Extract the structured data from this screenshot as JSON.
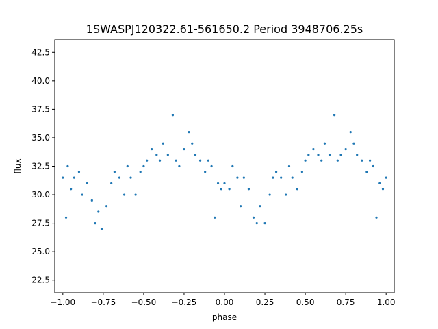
{
  "chart_data": {
    "type": "scatter",
    "title": "1SWASPJ120322.61-561650.2 Period 3948706.25s",
    "xlabel": "phase",
    "ylabel": "flux",
    "xlim": [
      -1.05,
      1.05
    ],
    "ylim": [
      21.4,
      43.6
    ],
    "xticks": [
      -1.0,
      -0.75,
      -0.5,
      -0.25,
      0.0,
      0.25,
      0.5,
      0.75,
      1.0
    ],
    "xtick_labels": [
      "−1.00",
      "−0.75",
      "−0.50",
      "−0.25",
      "0.00",
      "0.25",
      "0.50",
      "0.75",
      "1.00"
    ],
    "yticks": [
      22.5,
      25.0,
      27.5,
      30.0,
      32.5,
      35.0,
      37.5,
      40.0,
      42.5
    ],
    "ytick_labels": [
      "22.5",
      "25.0",
      "27.5",
      "30.0",
      "32.5",
      "35.0",
      "37.5",
      "40.0",
      "42.5"
    ],
    "grid": false,
    "marker_color": "#1f77b4",
    "series": [
      {
        "points": [
          [
            -1.0,
            31.5
          ],
          [
            -0.98,
            28.0
          ],
          [
            -0.97,
            32.5
          ],
          [
            -0.95,
            30.5
          ],
          [
            -0.93,
            31.5
          ],
          [
            -0.9,
            32.0
          ],
          [
            -0.88,
            30.0
          ],
          [
            -0.85,
            31.0
          ],
          [
            -0.82,
            29.5
          ],
          [
            -0.8,
            27.5
          ],
          [
            -0.78,
            28.5
          ],
          [
            -0.76,
            27.0
          ],
          [
            -0.73,
            29.0
          ],
          [
            -0.7,
            31.0
          ],
          [
            -0.68,
            32.0
          ],
          [
            -0.65,
            31.5
          ],
          [
            -0.62,
            30.0
          ],
          [
            -0.6,
            32.5
          ],
          [
            -0.58,
            31.5
          ],
          [
            -0.55,
            30.0
          ],
          [
            -0.52,
            32.0
          ],
          [
            -0.5,
            32.5
          ],
          [
            -0.48,
            33.0
          ],
          [
            -0.45,
            34.0
          ],
          [
            -0.42,
            33.5
          ],
          [
            -0.4,
            33.0
          ],
          [
            -0.38,
            34.5
          ],
          [
            -0.35,
            33.5
          ],
          [
            -0.32,
            37.0
          ],
          [
            -0.3,
            33.0
          ],
          [
            -0.28,
            32.5
          ],
          [
            -0.25,
            34.0
          ],
          [
            -0.22,
            35.5
          ],
          [
            -0.2,
            34.5
          ],
          [
            -0.18,
            33.5
          ],
          [
            -0.15,
            33.0
          ],
          [
            -0.12,
            32.0
          ],
          [
            -0.1,
            33.0
          ],
          [
            -0.08,
            32.5
          ],
          [
            -0.06,
            28.0
          ],
          [
            -0.04,
            31.0
          ],
          [
            -0.02,
            30.5
          ],
          [
            0.0,
            31.0
          ],
          [
            0.03,
            30.5
          ],
          [
            0.05,
            32.5
          ],
          [
            0.08,
            31.5
          ],
          [
            0.1,
            29.0
          ],
          [
            0.12,
            31.5
          ],
          [
            0.15,
            30.5
          ],
          [
            0.18,
            28.0
          ],
          [
            0.2,
            27.5
          ],
          [
            0.22,
            29.0
          ],
          [
            0.25,
            27.5
          ],
          [
            0.28,
            30.0
          ],
          [
            0.3,
            31.5
          ],
          [
            0.32,
            32.0
          ],
          [
            0.35,
            31.5
          ],
          [
            0.38,
            30.0
          ],
          [
            0.4,
            32.5
          ],
          [
            0.42,
            31.5
          ],
          [
            0.45,
            30.5
          ],
          [
            0.48,
            32.0
          ],
          [
            0.5,
            33.0
          ],
          [
            0.52,
            33.5
          ],
          [
            0.55,
            34.0
          ],
          [
            0.58,
            33.5
          ],
          [
            0.6,
            33.0
          ],
          [
            0.62,
            34.5
          ],
          [
            0.65,
            33.5
          ],
          [
            0.68,
            37.0
          ],
          [
            0.7,
            33.0
          ],
          [
            0.72,
            33.5
          ],
          [
            0.75,
            34.0
          ],
          [
            0.78,
            35.5
          ],
          [
            0.8,
            34.5
          ],
          [
            0.82,
            33.5
          ],
          [
            0.85,
            33.0
          ],
          [
            0.88,
            32.0
          ],
          [
            0.9,
            33.0
          ],
          [
            0.92,
            32.5
          ],
          [
            0.94,
            28.0
          ],
          [
            0.96,
            31.0
          ],
          [
            0.98,
            30.5
          ],
          [
            1.0,
            31.5
          ]
        ]
      }
    ]
  }
}
